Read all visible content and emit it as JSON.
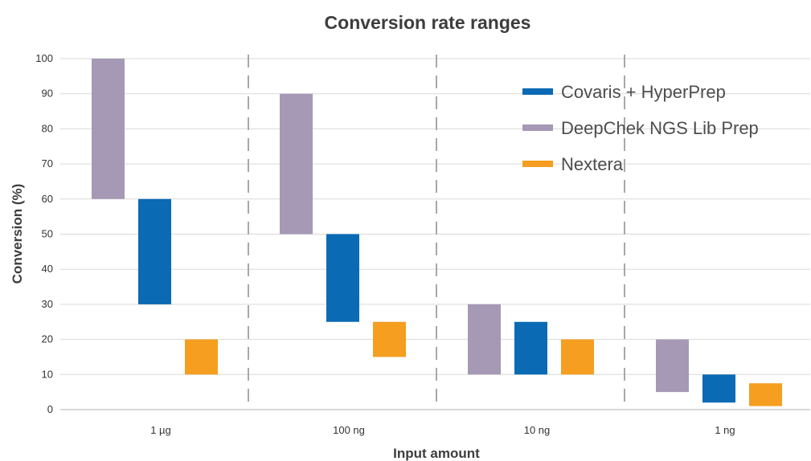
{
  "chart_data": {
    "type": "bar",
    "subtype": "floating-range",
    "title": "Conversion rate ranges",
    "xlabel": "Input amount",
    "ylabel": "Conversion (%)",
    "ylim": [
      0,
      100
    ],
    "yticks": [
      0,
      10,
      20,
      30,
      40,
      50,
      60,
      70,
      80,
      90,
      100
    ],
    "grid": true,
    "legend_position": "top-right",
    "categories": [
      "1 µg",
      "100 ng",
      "10 ng",
      "1 ng"
    ],
    "series": [
      {
        "name": "DeepChek NGS Lib Prep",
        "color": "#a599b5",
        "ranges": [
          [
            60,
            100
          ],
          [
            50,
            90
          ],
          [
            10,
            30
          ],
          [
            5,
            20
          ]
        ]
      },
      {
        "name": "Covaris + HyperPrep",
        "color": "#0a6ab4",
        "ranges": [
          [
            30,
            60
          ],
          [
            25,
            50
          ],
          [
            10,
            25
          ],
          [
            2,
            10
          ]
        ]
      },
      {
        "name": "Nextera",
        "color": "#f59e20",
        "ranges": [
          [
            10,
            20
          ],
          [
            15,
            25
          ],
          [
            10,
            20
          ],
          [
            1,
            7.5
          ]
        ]
      }
    ],
    "legend_order": [
      "Covaris + HyperPrep",
      "DeepChek NGS Lib Prep",
      "Nextera"
    ]
  }
}
